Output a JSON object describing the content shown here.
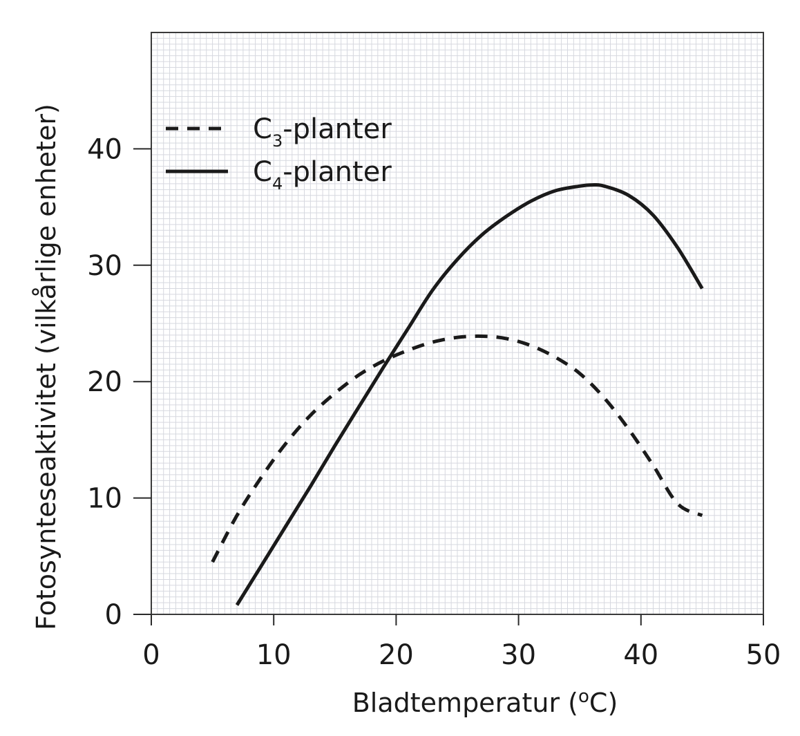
{
  "chart_data": {
    "type": "line",
    "xlabel": "Bladtemperatur (°C)",
    "xlabel_parts": {
      "before": "Bladtemperatur (",
      "superscript": "o",
      "after": "C)"
    },
    "ylabel": "Fotosynteseaktivitet (vilkårlige enheter)",
    "xlim": [
      0,
      50
    ],
    "ylim": [
      0,
      50
    ],
    "xticks": [
      0,
      10,
      20,
      30,
      40,
      50
    ],
    "yticks": [
      0,
      10,
      20,
      30,
      40
    ],
    "grid": true,
    "minor_grid_step": 1,
    "legend_position": "top-left",
    "series": [
      {
        "name": "C3-planter",
        "name_parts": {
          "main": "C",
          "sub": "3",
          "rest": "-planter"
        },
        "style": "dashed",
        "color": "#1a1a1a",
        "x": [
          5,
          7,
          9,
          11,
          13,
          15,
          17,
          19,
          21,
          23,
          25,
          27,
          29,
          31,
          33,
          35,
          37,
          39,
          41,
          43,
          45
        ],
        "y": [
          4.5,
          8.5,
          11.8,
          14.7,
          17.1,
          19.0,
          20.6,
          21.8,
          22.7,
          23.4,
          23.8,
          23.9,
          23.7,
          23.1,
          22.1,
          20.7,
          18.6,
          15.9,
          12.8,
          9.5,
          8.5
        ]
      },
      {
        "name": "C4-planter",
        "name_parts": {
          "main": "C",
          "sub": "4",
          "rest": "-planter"
        },
        "style": "solid",
        "color": "#1a1a1a",
        "x": [
          7,
          9,
          11,
          13,
          15,
          17,
          19,
          21,
          23,
          25,
          27,
          29,
          31,
          33,
          35,
          36,
          37,
          39,
          41,
          43,
          45
        ],
        "y": [
          0.8,
          4.2,
          7.6,
          11.0,
          14.5,
          17.9,
          21.3,
          24.6,
          27.9,
          30.5,
          32.6,
          34.2,
          35.5,
          36.4,
          36.8,
          36.9,
          36.8,
          36.0,
          34.3,
          31.5,
          28.0
        ]
      }
    ]
  }
}
